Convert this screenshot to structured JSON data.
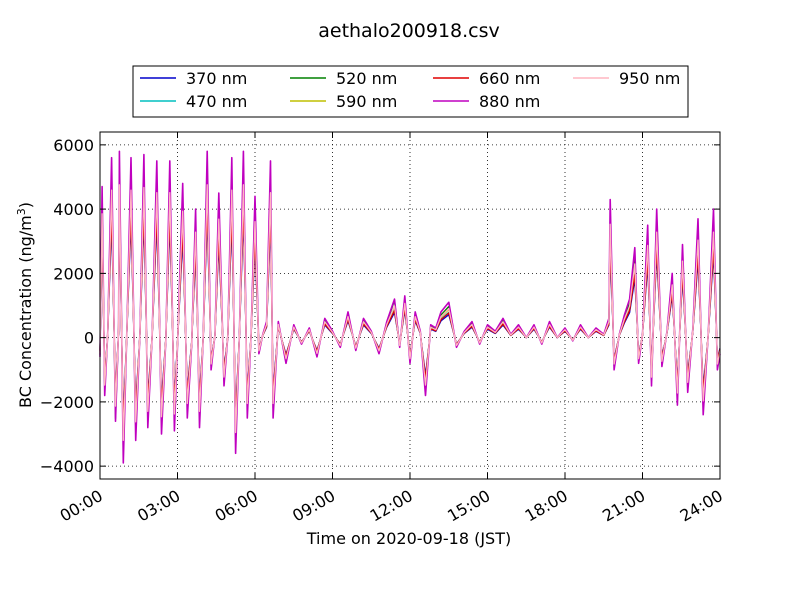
{
  "chart_data": {
    "type": "line",
    "title": "aethalo200918.csv",
    "xlabel": "Time on 2020-09-18 (JST)",
    "ylabel": "BC Concentration (ng/m",
    "ylabel_sup": "3",
    "ylabel_close": ")",
    "xlim": [
      0,
      24
    ],
    "ylim": [
      -4400,
      6400
    ],
    "yticks": [
      -4000,
      -2000,
      0,
      2000,
      4000,
      6000
    ],
    "ytick_labels": [
      "−4000",
      "−2000",
      "0",
      "2000",
      "4000",
      "6000"
    ],
    "xticks": [
      0,
      3,
      6,
      9,
      12,
      15,
      18,
      21,
      24
    ],
    "xtick_labels": [
      "00:00",
      "03:00",
      "06:00",
      "09:00",
      "12:00",
      "15:00",
      "18:00",
      "21:00",
      "24:00"
    ],
    "grid": true,
    "legend_position": "top-center",
    "series": [
      {
        "name": "370 nm",
        "color": "#0000cc",
        "scale": 0.65
      },
      {
        "name": "470 nm",
        "color": "#00bfbf",
        "scale": 0.72
      },
      {
        "name": "520 nm",
        "color": "#008000",
        "scale": 0.88
      },
      {
        "name": "590 nm",
        "color": "#bfbf00",
        "scale": 0.8
      },
      {
        "name": "660 nm",
        "color": "#e00000",
        "scale": 0.7
      },
      {
        "name": "880 nm",
        "color": "#bf00bf",
        "scale": 1.0
      },
      {
        "name": "950 nm",
        "color": "#ffb6c1",
        "scale": 0.82
      }
    ],
    "profile_880nm": [
      [
        0.0,
        -600
      ],
      [
        0.08,
        4700
      ],
      [
        0.18,
        -1800
      ],
      [
        0.3,
        200
      ],
      [
        0.45,
        5600
      ],
      [
        0.6,
        -2600
      ],
      [
        0.72,
        300
      ],
      [
        0.75,
        5800
      ],
      [
        0.9,
        -3900
      ],
      [
        1.05,
        500
      ],
      [
        1.2,
        5600
      ],
      [
        1.38,
        -3200
      ],
      [
        1.55,
        200
      ],
      [
        1.7,
        5700
      ],
      [
        1.85,
        -2800
      ],
      [
        2.02,
        100
      ],
      [
        2.2,
        5500
      ],
      [
        2.38,
        -3000
      ],
      [
        2.55,
        0
      ],
      [
        2.7,
        5500
      ],
      [
        2.88,
        -2900
      ],
      [
        3.02,
        200
      ],
      [
        3.2,
        4800
      ],
      [
        3.38,
        -2500
      ],
      [
        3.55,
        -200
      ],
      [
        3.7,
        4000
      ],
      [
        3.85,
        -2800
      ],
      [
        4.0,
        100
      ],
      [
        4.15,
        5800
      ],
      [
        4.3,
        -1000
      ],
      [
        4.45,
        100
      ],
      [
        4.6,
        4500
      ],
      [
        4.8,
        -1500
      ],
      [
        4.95,
        100
      ],
      [
        5.1,
        5600
      ],
      [
        5.25,
        -3600
      ],
      [
        5.4,
        200
      ],
      [
        5.55,
        5800
      ],
      [
        5.7,
        -2500
      ],
      [
        5.85,
        100
      ],
      [
        6.0,
        4400
      ],
      [
        6.15,
        -500
      ],
      [
        6.3,
        100
      ],
      [
        6.45,
        500
      ],
      [
        6.6,
        5500
      ],
      [
        6.7,
        -2500
      ],
      [
        6.9,
        500
      ],
      [
        7.2,
        -800
      ],
      [
        7.5,
        400
      ],
      [
        7.8,
        -200
      ],
      [
        8.1,
        300
      ],
      [
        8.4,
        -600
      ],
      [
        8.7,
        600
      ],
      [
        9.0,
        200
      ],
      [
        9.3,
        -300
      ],
      [
        9.6,
        800
      ],
      [
        9.9,
        -400
      ],
      [
        10.2,
        600
      ],
      [
        10.5,
        200
      ],
      [
        10.8,
        -500
      ],
      [
        11.1,
        500
      ],
      [
        11.4,
        1200
      ],
      [
        11.6,
        -300
      ],
      [
        11.8,
        1300
      ],
      [
        12.0,
        -800
      ],
      [
        12.2,
        800
      ],
      [
        12.4,
        200
      ],
      [
        12.6,
        -1800
      ],
      [
        12.8,
        400
      ],
      [
        13.0,
        300
      ],
      [
        13.2,
        800
      ],
      [
        13.5,
        1100
      ],
      [
        13.8,
        -300
      ],
      [
        14.1,
        200
      ],
      [
        14.4,
        500
      ],
      [
        14.7,
        -200
      ],
      [
        15.0,
        400
      ],
      [
        15.3,
        200
      ],
      [
        15.6,
        600
      ],
      [
        15.9,
        100
      ],
      [
        16.2,
        400
      ],
      [
        16.5,
        0
      ],
      [
        16.8,
        400
      ],
      [
        17.1,
        -200
      ],
      [
        17.4,
        500
      ],
      [
        17.7,
        0
      ],
      [
        18.0,
        300
      ],
      [
        18.3,
        -100
      ],
      [
        18.6,
        400
      ],
      [
        18.9,
        0
      ],
      [
        19.2,
        300
      ],
      [
        19.5,
        100
      ],
      [
        19.7,
        600
      ],
      [
        19.75,
        4300
      ],
      [
        19.9,
        -1000
      ],
      [
        20.1,
        100
      ],
      [
        20.3,
        700
      ],
      [
        20.5,
        1200
      ],
      [
        20.7,
        2800
      ],
      [
        20.85,
        -800
      ],
      [
        21.0,
        100
      ],
      [
        21.2,
        3500
      ],
      [
        21.35,
        -1500
      ],
      [
        21.55,
        4000
      ],
      [
        21.75,
        -900
      ],
      [
        21.95,
        200
      ],
      [
        22.15,
        2000
      ],
      [
        22.35,
        -2100
      ],
      [
        22.55,
        2900
      ],
      [
        22.75,
        -1700
      ],
      [
        22.95,
        300
      ],
      [
        23.15,
        3700
      ],
      [
        23.35,
        -2400
      ],
      [
        23.55,
        200
      ],
      [
        23.75,
        4000
      ],
      [
        23.9,
        -1000
      ],
      [
        24.0,
        -500
      ]
    ]
  }
}
